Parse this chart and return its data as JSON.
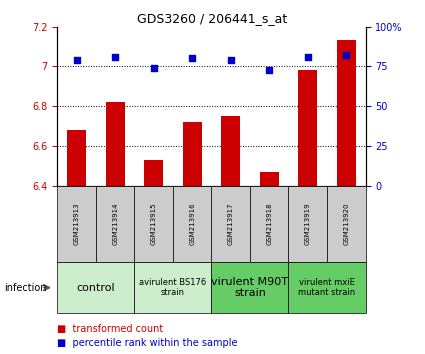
{
  "title": "GDS3260 / 206441_s_at",
  "samples": [
    "GSM213913",
    "GSM213914",
    "GSM213915",
    "GSM213916",
    "GSM213917",
    "GSM213918",
    "GSM213919",
    "GSM213920"
  ],
  "red_values": [
    6.68,
    6.82,
    6.53,
    6.72,
    6.75,
    6.47,
    6.98,
    7.13
  ],
  "blue_values": [
    79,
    81,
    74,
    80,
    79,
    73,
    81,
    82
  ],
  "ylim_left": [
    6.4,
    7.2
  ],
  "ylim_right": [
    0,
    100
  ],
  "yticks_left": [
    6.4,
    6.6,
    6.8,
    7.0,
    7.2
  ],
  "yticks_right": [
    0,
    25,
    50,
    75,
    100
  ],
  "ytick_labels_left": [
    "6.4",
    "6.6",
    "6.8",
    "7",
    "7.2"
  ],
  "ytick_labels_right": [
    "0",
    "25",
    "50",
    "75",
    "100%"
  ],
  "hlines": [
    6.6,
    6.8,
    7.0
  ],
  "bar_color": "#cc0000",
  "dot_color": "#0000cc",
  "bar_width": 0.5,
  "groups": [
    {
      "label": "control",
      "indices": [
        0,
        1
      ],
      "color": "#cceecc",
      "fontsize": 8
    },
    {
      "label": "avirulent BS176\nstrain",
      "indices": [
        2,
        3
      ],
      "color": "#cceecc",
      "fontsize": 6
    },
    {
      "label": "virulent M90T\nstrain",
      "indices": [
        4,
        5
      ],
      "color": "#66cc66",
      "fontsize": 8
    },
    {
      "label": "virulent mxiE\nmutant strain",
      "indices": [
        6,
        7
      ],
      "color": "#66cc66",
      "fontsize": 6
    }
  ],
  "infection_label": "infection",
  "legend_red": "transformed count",
  "legend_blue": "percentile rank within the sample",
  "bar_color_legend": "#cc0000",
  "dot_color_legend": "#0000cc",
  "tick_color_left": "#cc0000",
  "tick_color_right": "#0000cc",
  "gray_color": "#cccccc",
  "title_fontsize": 9,
  "tick_fontsize": 7,
  "legend_fontsize": 7,
  "sample_fontsize": 5,
  "infection_fontsize": 7
}
